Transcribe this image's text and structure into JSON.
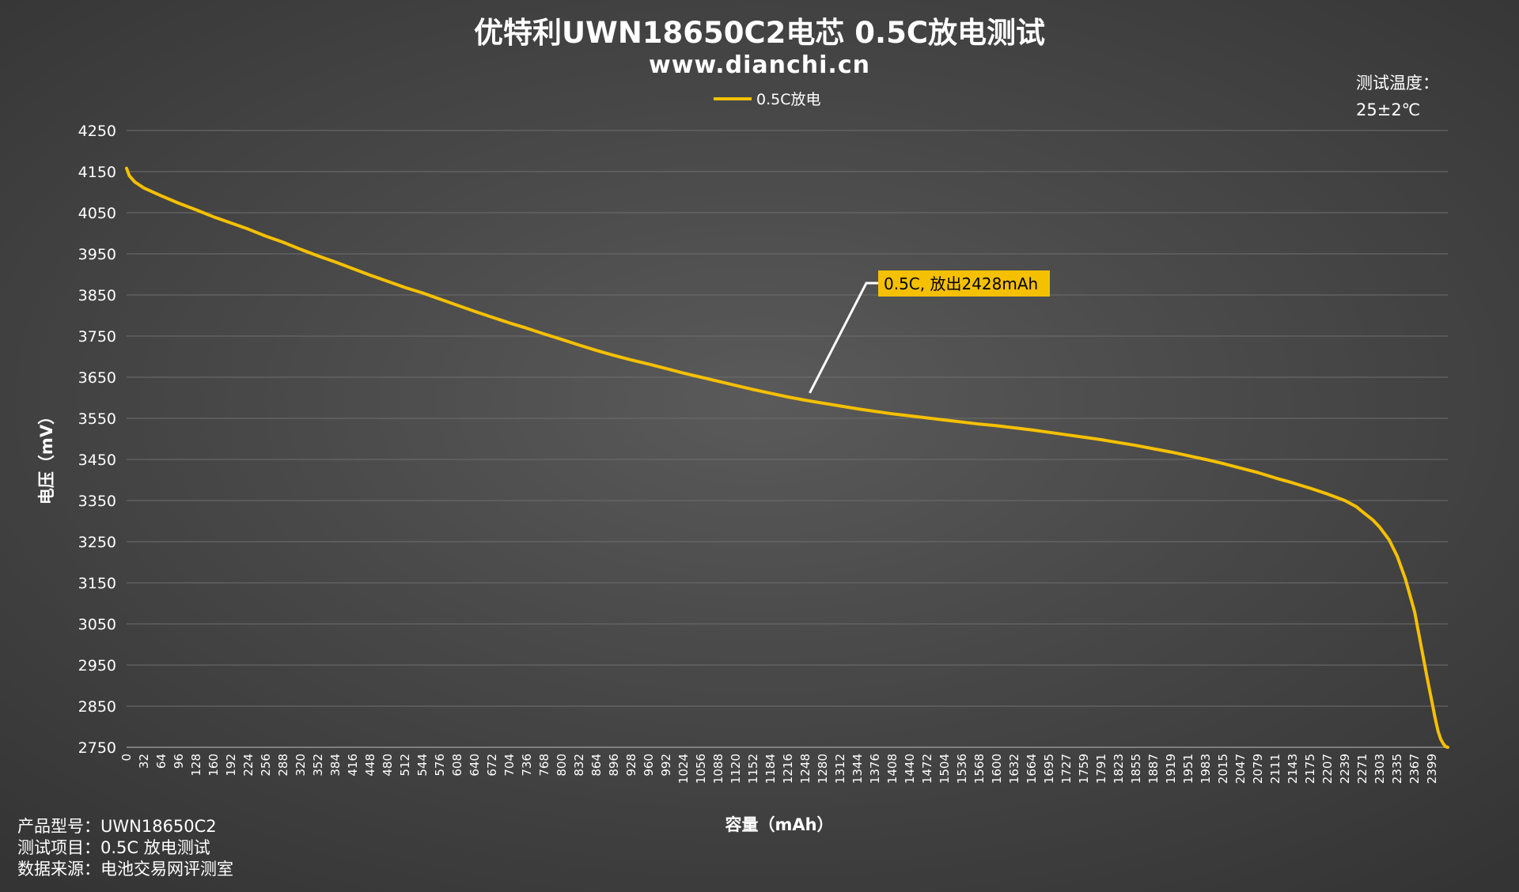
{
  "chart_data": {
    "type": "line",
    "title": "优特利UWN18650C2电芯 0.5C放电测试",
    "subtitle": "www.dianchi.cn",
    "xlabel": "容量（mAh）",
    "ylabel": "电压（mV）",
    "ylim": [
      2750,
      4250
    ],
    "xlim": [
      0,
      2428
    ],
    "grid": "horizontal",
    "legend": "top-center",
    "y_ticks": [
      "4250",
      "4150",
      "4050",
      "3950",
      "3850",
      "3750",
      "3650",
      "3550",
      "3450",
      "3350",
      "3250",
      "3150",
      "3050",
      "2950",
      "2850",
      "2750"
    ],
    "x_ticks": [
      "0",
      "32",
      "64",
      "96",
      "128",
      "160",
      "192",
      "224",
      "256",
      "288",
      "320",
      "352",
      "384",
      "416",
      "448",
      "480",
      "512",
      "544",
      "576",
      "608",
      "640",
      "672",
      "704",
      "736",
      "768",
      "800",
      "832",
      "864",
      "896",
      "928",
      "960",
      "992",
      "1024",
      "1056",
      "1088",
      "1120",
      "1152",
      "1184",
      "1216",
      "1248",
      "1280",
      "1312",
      "1344",
      "1376",
      "1408",
      "1440",
      "1472",
      "1504",
      "1536",
      "1568",
      "1600",
      "1632",
      "1664",
      "1695",
      "1727",
      "1759",
      "1791",
      "1823",
      "1855",
      "1887",
      "1919",
      "1951",
      "1983",
      "2015",
      "2047",
      "2079",
      "2111",
      "2143",
      "2175",
      "2207",
      "2239",
      "2271",
      "2303",
      "2335",
      "2367",
      "2399"
    ],
    "series": [
      {
        "name": "0.5C放电",
        "color": "#f5c000",
        "x": [
          0,
          5,
          15,
          32,
          64,
          96,
          128,
          160,
          192,
          224,
          256,
          288,
          320,
          352,
          384,
          416,
          448,
          480,
          512,
          544,
          576,
          608,
          640,
          672,
          704,
          736,
          768,
          800,
          832,
          864,
          896,
          928,
          960,
          992,
          1024,
          1056,
          1088,
          1120,
          1152,
          1184,
          1216,
          1248,
          1280,
          1312,
          1344,
          1376,
          1408,
          1440,
          1472,
          1504,
          1536,
          1568,
          1600,
          1632,
          1664,
          1695,
          1727,
          1759,
          1791,
          1823,
          1855,
          1887,
          1919,
          1951,
          1983,
          2015,
          2047,
          2079,
          2111,
          2143,
          2175,
          2207,
          2239,
          2260,
          2271,
          2290,
          2303,
          2320,
          2335,
          2350,
          2367,
          2380,
          2390,
          2399,
          2405,
          2410,
          2415,
          2420,
          2424,
          2428
        ],
        "values": [
          4158,
          4140,
          4125,
          4110,
          4091,
          4073,
          4057,
          4040,
          4025,
          4010,
          3993,
          3978,
          3961,
          3945,
          3930,
          3914,
          3898,
          3883,
          3868,
          3855,
          3840,
          3825,
          3810,
          3796,
          3782,
          3769,
          3755,
          3742,
          3728,
          3715,
          3703,
          3692,
          3682,
          3671,
          3660,
          3650,
          3640,
          3630,
          3620,
          3611,
          3602,
          3594,
          3587,
          3580,
          3573,
          3567,
          3561,
          3556,
          3551,
          3546,
          3541,
          3536,
          3532,
          3527,
          3522,
          3516,
          3510,
          3504,
          3498,
          3491,
          3484,
          3476,
          3468,
          3459,
          3450,
          3440,
          3429,
          3418,
          3405,
          3393,
          3380,
          3366,
          3350,
          3335,
          3323,
          3303,
          3285,
          3255,
          3215,
          3160,
          3080,
          2990,
          2920,
          2860,
          2820,
          2790,
          2770,
          2758,
          2752,
          2750
        ]
      }
    ],
    "annotation": {
      "text": "0.5C, 放出2428mAh",
      "point_x": 1256,
      "point_y": 3604
    }
  },
  "notes": {
    "temperature_label": "测试温度：",
    "temperature_value": "25±2℃",
    "product_model": "产品型号：UWN18650C2",
    "test_item": "测试项目：0.5C 放电测试",
    "data_source": "数据来源：电池交易网评测室"
  }
}
